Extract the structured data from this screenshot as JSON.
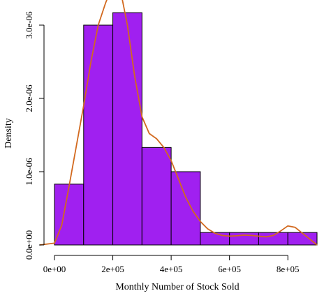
{
  "chart_data": {
    "type": "bar",
    "title": "",
    "xlabel": "Monthly Number of Stock Sold",
    "ylabel": "Density",
    "xlim": [
      0,
      900000
    ],
    "ylim": [
      0,
      3.2e-06
    ],
    "x_ticks": [
      0,
      200000,
      400000,
      600000,
      800000
    ],
    "x_tick_labels": [
      "0e+00",
      "2e+05",
      "4e+05",
      "6e+05",
      "8e+05"
    ],
    "y_ticks": [
      0,
      1e-06,
      2e-06,
      3e-06
    ],
    "y_tick_labels": [
      "0.0e+00",
      "1.0e-06",
      "2.0e-06",
      "3.0e-06"
    ],
    "grid": false,
    "bins": [
      {
        "x0": 0,
        "x1": 100000,
        "density": 8.3e-07
      },
      {
        "x0": 100000,
        "x1": 200000,
        "density": 3e-06
      },
      {
        "x0": 200000,
        "x1": 300000,
        "density": 3.17e-06
      },
      {
        "x0": 300000,
        "x1": 400000,
        "density": 1.33e-06
      },
      {
        "x0": 400000,
        "x1": 500000,
        "density": 1e-06
      },
      {
        "x0": 500000,
        "x1": 600000,
        "density": 1.7e-07
      },
      {
        "x0": 600000,
        "x1": 700000,
        "density": 1.7e-07
      },
      {
        "x0": 700000,
        "x1": 800000,
        "density": 1.7e-07
      },
      {
        "x0": 800000,
        "x1": 900000,
        "density": 1.7e-07
      }
    ],
    "density_curve": {
      "x": [
        -50000,
        0,
        25000,
        50000,
        75000,
        100000,
        125000,
        150000,
        175000,
        200000,
        225000,
        250000,
        275000,
        300000,
        325000,
        350000,
        375000,
        400000,
        425000,
        450000,
        475000,
        500000,
        525000,
        550000,
        575000,
        600000,
        625000,
        650000,
        675000,
        700000,
        725000,
        750000,
        775000,
        800000,
        825000,
        850000,
        875000,
        900000
      ],
      "y": [
        0,
        2.5e-08,
        2.7e-07,
        8e-07,
        1.35e-06,
        1.9e-06,
        2.5e-06,
        3e-06,
        3.3e-06,
        3.55e-06,
        3.5e-06,
        3e-06,
        2.3e-06,
        1.75e-06,
        1.52e-06,
        1.45e-06,
        1.33e-06,
        1.15e-06,
        9e-07,
        6.5e-07,
        4.6e-07,
        3.2e-07,
        2.2e-07,
        1.6e-07,
        1.3e-07,
        1.2e-07,
        1.25e-07,
        1.35e-07,
        1.3e-07,
        1.2e-07,
        1.1e-07,
        1.3e-07,
        1.9e-07,
        2.6e-07,
        2.4e-07,
        1.6e-07,
        8e-08,
        0
      ]
    },
    "colors": {
      "bar_fill": "#a020f0",
      "bar_stroke": "#000000",
      "curve": "#d2691e",
      "axis": "#000000"
    }
  }
}
